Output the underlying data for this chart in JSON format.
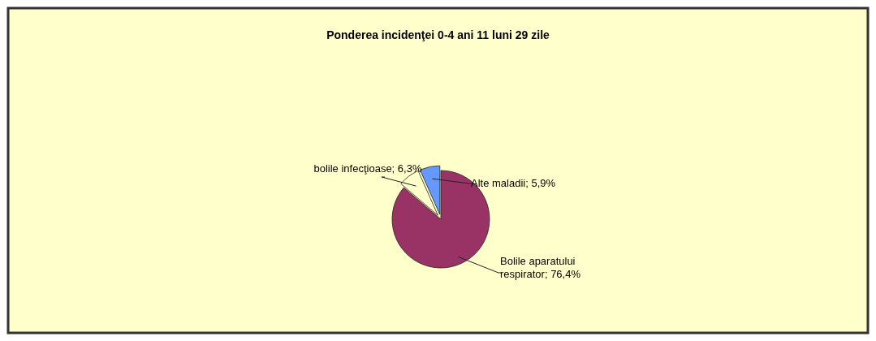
{
  "chart_data": {
    "type": "pie",
    "title": "Ponderea incidenţei  0-4 ani 11 luni 29 zile",
    "categories": [
      "Bolile aparatului respirator",
      "bolile infecţioase",
      "Alte maladii"
    ],
    "values": [
      76.4,
      6.3,
      5.9
    ],
    "value_labels": [
      "76,4%",
      "6,3%",
      "5,9%"
    ],
    "colors": [
      "#993366",
      "#ffffcc",
      "#6699ff"
    ]
  }
}
